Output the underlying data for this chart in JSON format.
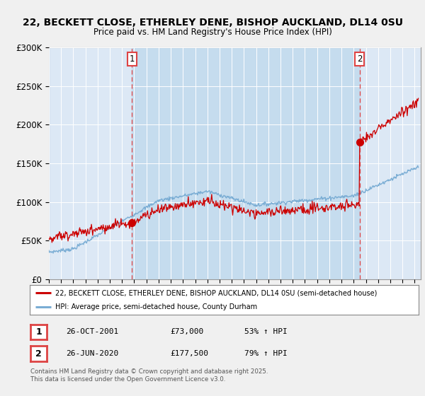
{
  "title_line1": "22, BECKETT CLOSE, ETHERLEY DENE, BISHOP AUCKLAND, DL14 0SU",
  "title_line2": "Price paid vs. HM Land Registry's House Price Index (HPI)",
  "xlim_start": 1995.0,
  "xlim_end": 2025.5,
  "ylim_min": 0,
  "ylim_max": 300000,
  "purchase1_date": 2001.82,
  "purchase1_price": 73000,
  "purchase2_date": 2020.49,
  "purchase2_price": 177500,
  "legend_entry1": "22, BECKETT CLOSE, ETHERLEY DENE, BISHOP AUCKLAND, DL14 0SU (semi-detached house)",
  "legend_entry2": "HPI: Average price, semi-detached house, County Durham",
  "table_row1": [
    "1",
    "26-OCT-2001",
    "£73,000",
    "53% ↑ HPI"
  ],
  "table_row2": [
    "2",
    "26-JUN-2020",
    "£177,500",
    "79% ↑ HPI"
  ],
  "footnote": "Contains HM Land Registry data © Crown copyright and database right 2025.\nThis data is licensed under the Open Government Licence v3.0.",
  "line_color_property": "#cc0000",
  "line_color_hpi": "#7aadd4",
  "vline_color": "#dd4444",
  "dot_color_property": "#cc0000",
  "background_color": "#f0f0f0",
  "plot_bg_color": "#dce8f5",
  "shade_color": "#c5dcee",
  "yticks": [
    0,
    50000,
    100000,
    150000,
    200000,
    250000,
    300000
  ],
  "ytick_labels": [
    "£0",
    "£50K",
    "£100K",
    "£150K",
    "£200K",
    "£250K",
    "£300K"
  ]
}
